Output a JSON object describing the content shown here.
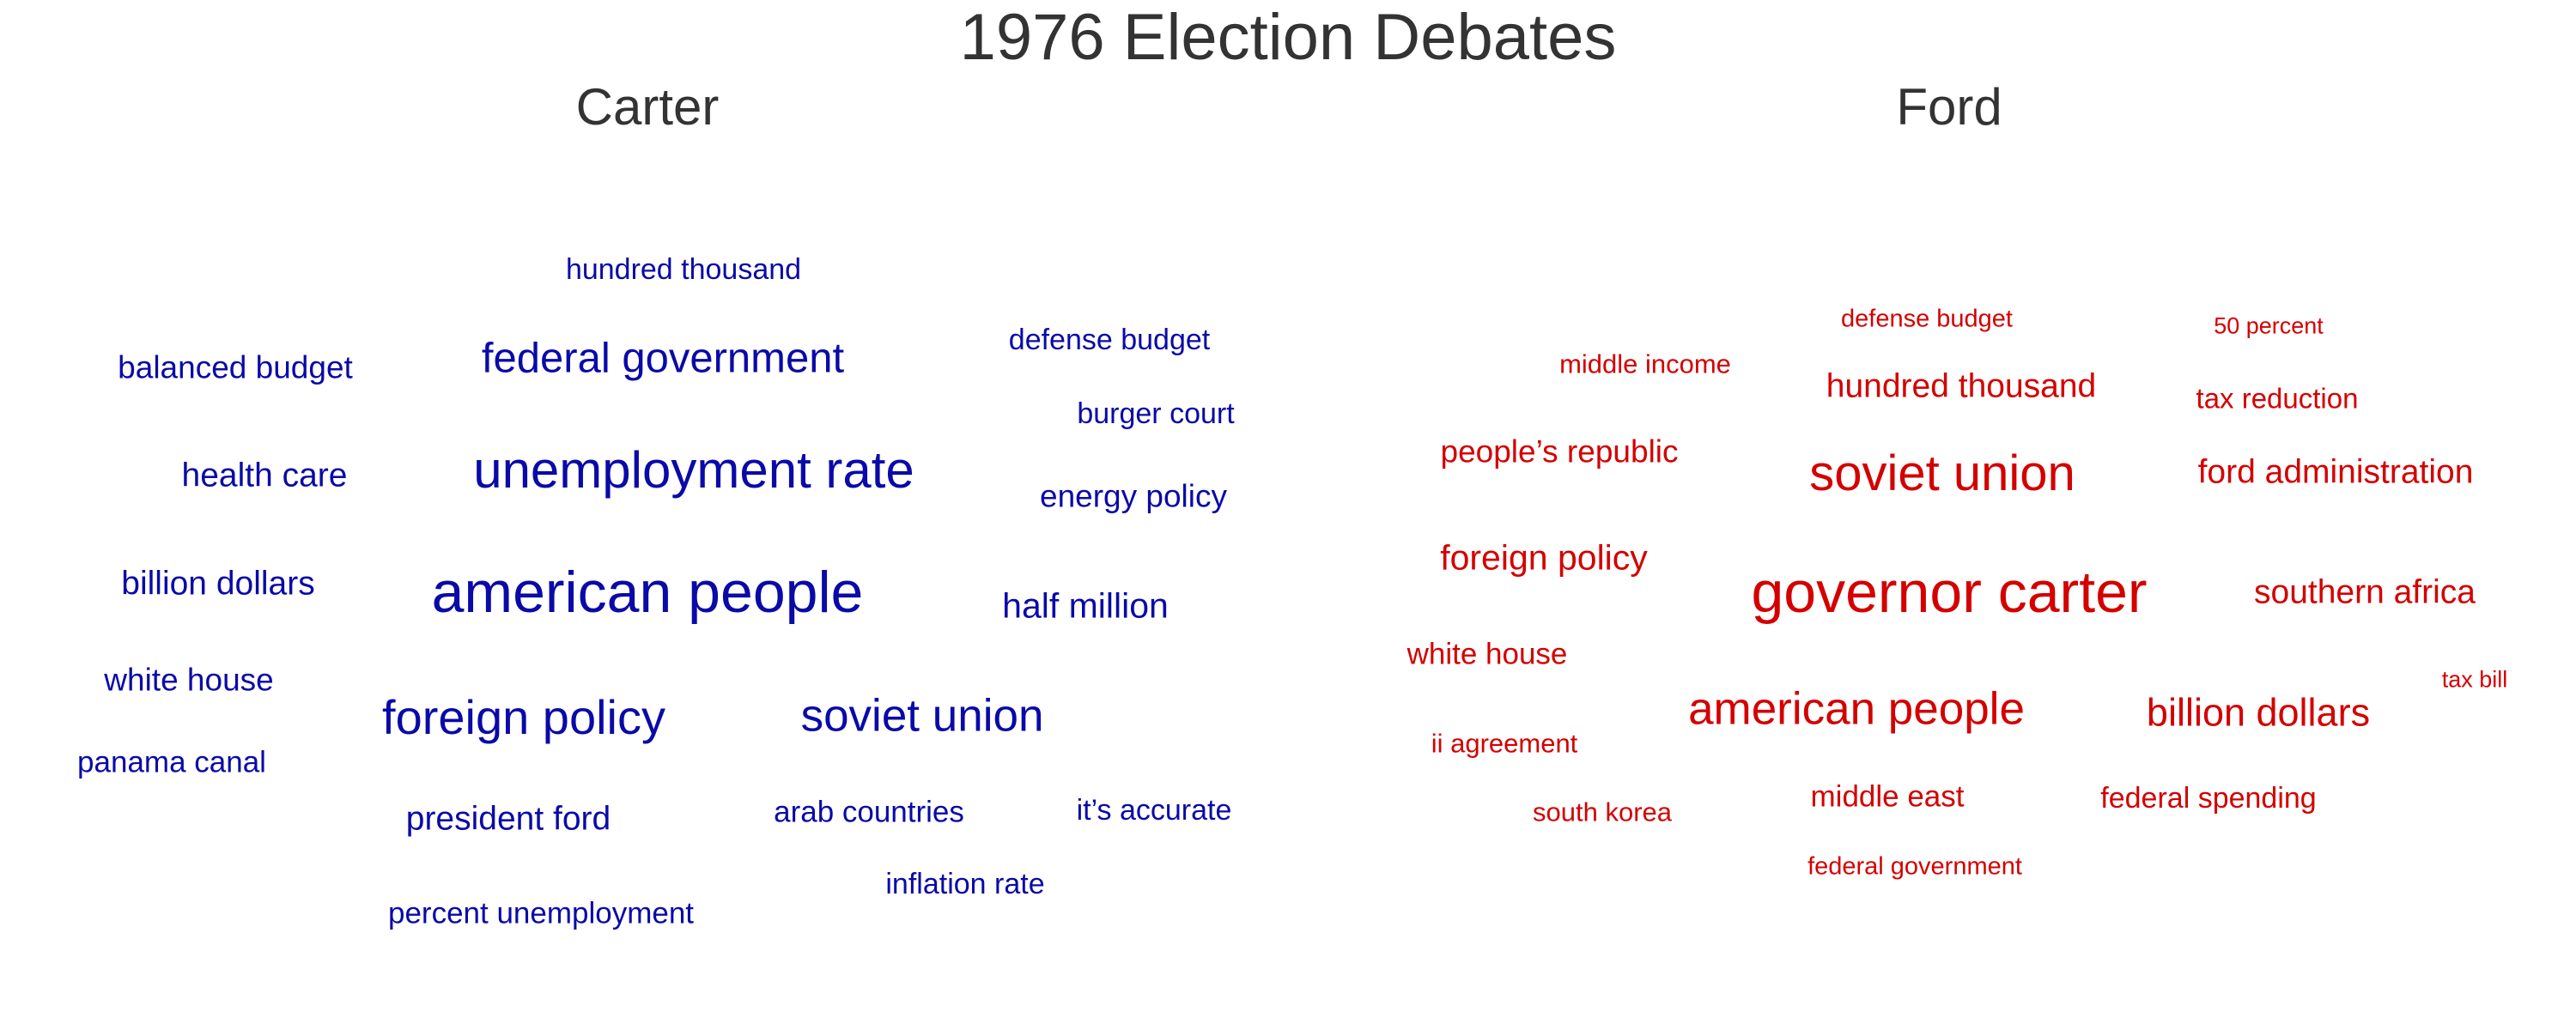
{
  "chart_data": {
    "type": "wordcloud",
    "title": "1976 Election Debates",
    "panels": [
      {
        "name": "Carter",
        "color": "#0a0aa8",
        "words": [
          {
            "text": "american people",
            "weight": 10
          },
          {
            "text": "unemployment rate",
            "weight": 8.8
          },
          {
            "text": "foreign policy",
            "weight": 8.3
          },
          {
            "text": "soviet union",
            "weight": 7.8
          },
          {
            "text": "federal government",
            "weight": 7.2
          },
          {
            "text": "half million",
            "weight": 6
          },
          {
            "text": "president ford",
            "weight": 5.8
          },
          {
            "text": "health care",
            "weight": 5.8
          },
          {
            "text": "billion dollars",
            "weight": 5.7
          },
          {
            "text": "white house",
            "weight": 5.5
          },
          {
            "text": "energy policy",
            "weight": 5.5
          },
          {
            "text": "balanced budget",
            "weight": 5.5
          },
          {
            "text": "percent unemployment",
            "weight": 5.2
          },
          {
            "text": "panama canal",
            "weight": 5.2
          },
          {
            "text": "arab countries",
            "weight": 5.2
          },
          {
            "text": "hundred thousand",
            "weight": 5
          },
          {
            "text": "defense budget",
            "weight": 5
          },
          {
            "text": "burger court",
            "weight": 5
          },
          {
            "text": "it’s accurate",
            "weight": 5
          },
          {
            "text": "inflation rate",
            "weight": 5
          }
        ]
      },
      {
        "name": "Ford",
        "color": "#d40000",
        "words": [
          {
            "text": "governor carter",
            "weight": 10
          },
          {
            "text": "soviet union",
            "weight": 8.5
          },
          {
            "text": "american people",
            "weight": 7.8
          },
          {
            "text": "billion dollars",
            "weight": 6.6
          },
          {
            "text": "foreign policy",
            "weight": 6
          },
          {
            "text": "ford administration",
            "weight": 5.8
          },
          {
            "text": "southern africa",
            "weight": 5.8
          },
          {
            "text": "hundred thousand",
            "weight": 5.8
          },
          {
            "text": "people’s republic",
            "weight": 5.5
          },
          {
            "text": "white house",
            "weight": 5.2
          },
          {
            "text": "middle east",
            "weight": 5.2
          },
          {
            "text": "federal spending",
            "weight": 5
          },
          {
            "text": "tax reduction",
            "weight": 4.8
          },
          {
            "text": "middle income",
            "weight": 4.5
          },
          {
            "text": "ii agreement",
            "weight": 4.5
          },
          {
            "text": "south korea",
            "weight": 4.5
          },
          {
            "text": "defense budget",
            "weight": 4.3
          },
          {
            "text": "federal government",
            "weight": 4.3
          },
          {
            "text": "50 percent",
            "weight": 4
          },
          {
            "text": "tax bill",
            "weight": 4
          }
        ]
      }
    ]
  }
}
